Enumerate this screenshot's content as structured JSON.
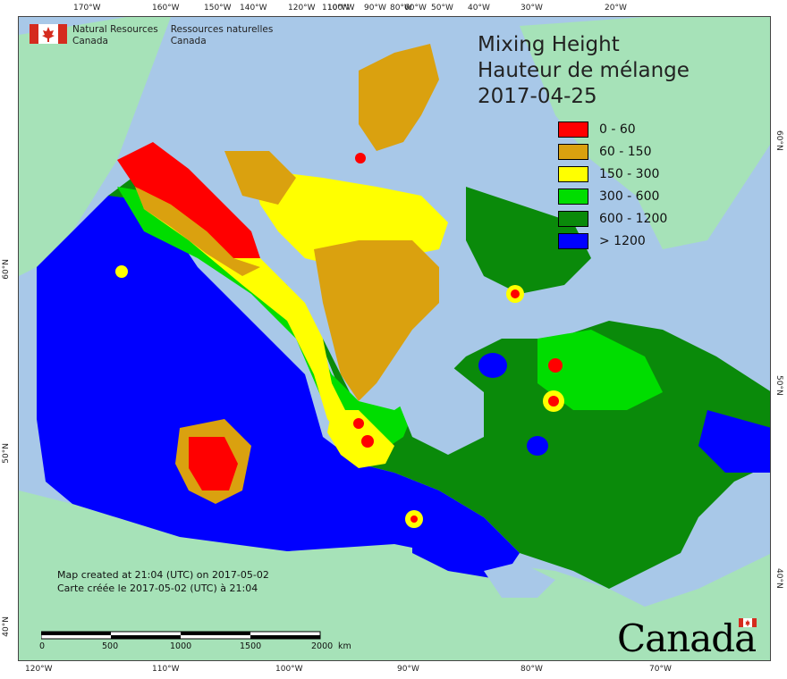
{
  "map": {
    "title_en": "Mixing Height",
    "title_fr": "Hauteur de mélange",
    "date": "2017-04-25",
    "legend": [
      {
        "label": "0 - 60",
        "color": "#ff0000"
      },
      {
        "label": "60 - 150",
        "color": "#daa10f"
      },
      {
        "label": "150 - 300",
        "color": "#ffff00"
      },
      {
        "label": "300 - 600",
        "color": "#00dd00"
      },
      {
        "label": "600 - 1200",
        "color": "#0a8a0a"
      },
      {
        "label": "> 1200",
        "color": "#0000ff"
      }
    ],
    "colors": {
      "ocean": "#a8c8e8",
      "land_outside": "#a6e2b8",
      "lake": "#a8c8e8"
    }
  },
  "agency": {
    "name_en_line1": "Natural Resources",
    "name_en_line2": "Canada",
    "name_fr_line1": "Ressources naturelles",
    "name_fr_line2": "Canada"
  },
  "created": {
    "line_en": "Map created at 21:04 (UTC) on 2017-05-02",
    "line_fr": "Carte créée le 2017-05-02 (UTC) à 21:04"
  },
  "scale": {
    "labels": [
      "0",
      "500",
      "1000",
      "1500",
      "2000"
    ],
    "unit": "km"
  },
  "wordmark": "Canada",
  "graticule": {
    "top": [
      "170°W",
      "160°W",
      "150°W",
      "140°W",
      "120°W",
      "110°W",
      "100°W",
      "90°W",
      "80°W",
      "60°W",
      "50°W",
      "40°W",
      "30°W",
      "20°W"
    ],
    "bottom": [
      "120°W",
      "110°W",
      "100°W",
      "90°W",
      "80°W",
      "70°W"
    ],
    "left": [
      "60°N",
      "50°N",
      "40°N"
    ],
    "right": [
      "60°N",
      "50°N",
      "40°N"
    ]
  }
}
